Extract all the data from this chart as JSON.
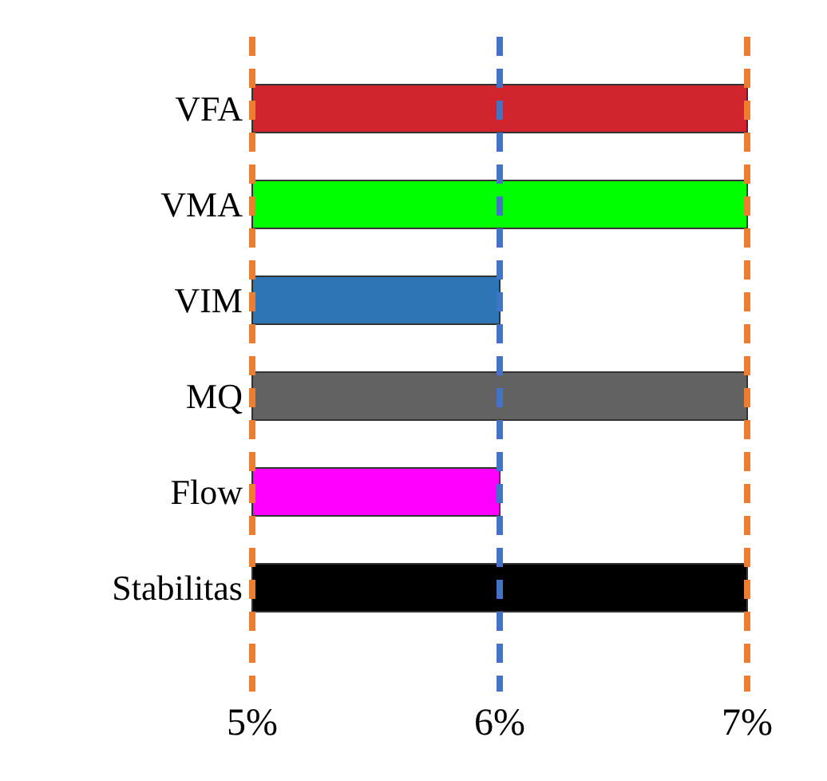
{
  "chart_data": {
    "type": "bar",
    "orientation": "horizontal",
    "categories": [
      "VFA",
      "VMA",
      "VIM",
      "MQ",
      "Flow",
      "Stabilitas"
    ],
    "values": [
      7,
      7,
      6,
      7,
      6,
      7
    ],
    "colors": [
      "#d0252d",
      "#00ff00",
      "#2e75b6",
      "#626262",
      "#ff00ff",
      "#000000"
    ],
    "xlim": [
      5,
      7
    ],
    "xticks": [
      {
        "value": 5,
        "label": "5%"
      },
      {
        "value": 6,
        "label": "6%"
      },
      {
        "value": 7,
        "label": "7%"
      }
    ],
    "ref_lines": [
      {
        "axis": "x",
        "value": 5,
        "color": "#ed7d31",
        "line_style": "dashed"
      },
      {
        "axis": "x",
        "value": 6,
        "color": "#4472c4",
        "line_style": "dashed"
      },
      {
        "axis": "x",
        "value": 7,
        "color": "#ed7d31",
        "line_style": "dashed"
      }
    ],
    "grid": false
  }
}
